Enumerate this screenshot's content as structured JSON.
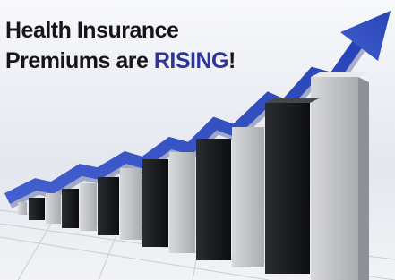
{
  "headline": {
    "line1": "Health Insurance",
    "line2_prefix": "Premiums are",
    "line2_emphasis": "RISING",
    "line2_suffix": "!"
  }
}
